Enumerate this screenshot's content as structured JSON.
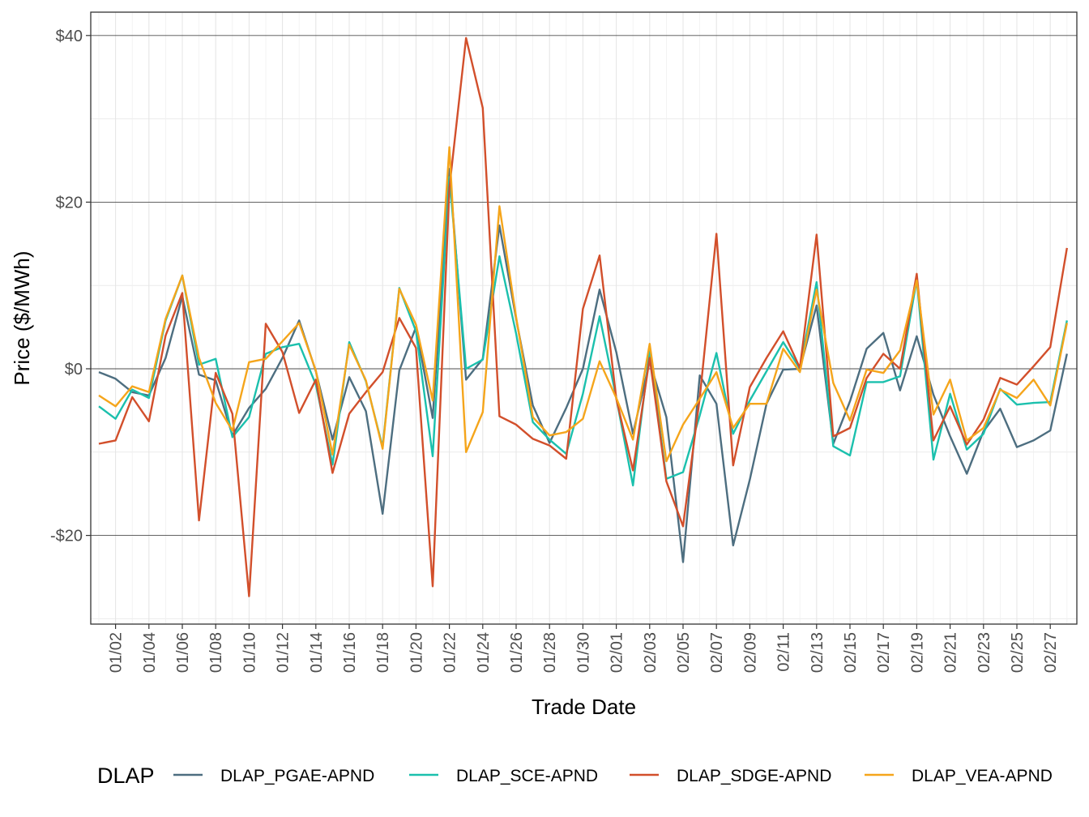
{
  "chart_data": {
    "type": "line",
    "xlabel": "Trade Date",
    "ylabel": "Price ($/MWh)",
    "ylim": [
      -30,
      43
    ],
    "yticks": [
      {
        "value": -20,
        "label": "-$20"
      },
      {
        "value": 0,
        "label": "$0"
      },
      {
        "value": 20,
        "label": "$20"
      },
      {
        "value": 40,
        "label": "$40"
      }
    ],
    "x": [
      "01/01",
      "01/02",
      "01/03",
      "01/04",
      "01/05",
      "01/06",
      "01/07",
      "01/08",
      "01/09",
      "01/10",
      "01/11",
      "01/12",
      "01/13",
      "01/14",
      "01/15",
      "01/16",
      "01/17",
      "01/18",
      "01/19",
      "01/20",
      "01/21",
      "01/22",
      "01/23",
      "01/24",
      "01/25",
      "01/26",
      "01/27",
      "01/28",
      "01/29",
      "01/30",
      "01/31",
      "02/01",
      "02/02",
      "02/03",
      "02/04",
      "02/05",
      "02/06",
      "02/07",
      "02/08",
      "02/09",
      "02/10",
      "02/11",
      "02/12",
      "02/13",
      "02/14",
      "02/15",
      "02/16",
      "02/17",
      "02/18",
      "02/19",
      "02/20",
      "02/21",
      "02/22",
      "02/23",
      "02/24",
      "02/25",
      "02/26",
      "02/27",
      "02/28"
    ],
    "xtick_labels": [
      "01/02",
      "01/04",
      "01/06",
      "01/08",
      "01/10",
      "01/12",
      "01/14",
      "01/16",
      "01/18",
      "01/20",
      "01/22",
      "01/24",
      "01/26",
      "01/28",
      "01/30",
      "02/01",
      "02/03",
      "02/05",
      "02/07",
      "02/09",
      "02/11",
      "02/13",
      "02/15",
      "02/17",
      "02/19",
      "02/21",
      "02/23",
      "02/25",
      "02/27"
    ],
    "grid": true,
    "legend": {
      "title": "DLAP",
      "position": "bottom"
    },
    "series": [
      {
        "name": "DLAP_PGAE-APND",
        "color": "#4d6e80",
        "values": [
          -0.4,
          -1.2,
          -2.8,
          -3.2,
          1.3,
          8.7,
          -0.7,
          -1.4,
          -8.0,
          -4.7,
          -2.4,
          1.3,
          5.8,
          -0.3,
          -8.5,
          -1.0,
          -5.1,
          -17.4,
          -0.2,
          5.0,
          -5.9,
          24.0,
          -1.3,
          1.2,
          17.2,
          6.0,
          -4.4,
          -8.9,
          -4.7,
          0.0,
          9.5,
          2.0,
          -7.8,
          0.9,
          -5.8,
          -23.2,
          -0.8,
          -4.2,
          -21.2,
          -13.3,
          -4.2,
          -0.1,
          0.0,
          7.6,
          -9.0,
          -3.9,
          2.4,
          4.3,
          -2.6,
          3.9,
          -3.1,
          -8.1,
          -12.6,
          -7.5,
          -4.8,
          -9.4,
          -8.6,
          -7.4,
          1.8
        ]
      },
      {
        "name": "DLAP_SCE-APND",
        "color": "#1bc0ad",
        "values": [
          -4.5,
          -6.0,
          -2.5,
          -3.5,
          5.8,
          11.2,
          0.5,
          1.2,
          -8.2,
          -5.8,
          1.8,
          2.6,
          3.0,
          -1.9,
          -11.5,
          3.2,
          -1.5,
          -9.4,
          9.7,
          4.5,
          -10.5,
          23.0,
          0.0,
          1.1,
          13.5,
          4.2,
          -6.4,
          -8.5,
          -10.2,
          -3.0,
          6.3,
          -3.5,
          -14.0,
          2.2,
          -13.2,
          -12.4,
          -5.6,
          1.9,
          -7.8,
          -3.8,
          -0.3,
          3.2,
          0.0,
          10.4,
          -9.3,
          -10.4,
          -1.6,
          -1.6,
          -0.9,
          10.7,
          -10.9,
          -3.0,
          -9.7,
          -7.8,
          -2.4,
          -4.3,
          -4.1,
          -4.0,
          5.8
        ]
      },
      {
        "name": "DLAP_SDGE-APND",
        "color": "#d24f2b",
        "values": [
          -9.0,
          -8.6,
          -3.4,
          -6.3,
          4.0,
          9.1,
          -18.2,
          -0.5,
          -5.4,
          -27.3,
          5.4,
          2.0,
          -5.3,
          -1.3,
          -12.5,
          -5.4,
          -2.8,
          -0.4,
          6.1,
          2.5,
          -26.1,
          21.7,
          39.7,
          31.3,
          -5.7,
          -6.7,
          -8.4,
          -9.2,
          -10.8,
          7.2,
          13.6,
          -3.6,
          -12.2,
          1.3,
          -13.5,
          -18.9,
          -3.5,
          16.2,
          -11.6,
          -2.2,
          1.3,
          4.5,
          0.1,
          16.1,
          -8.1,
          -7.1,
          -1.1,
          1.8,
          0.0,
          11.4,
          -8.6,
          -4.5,
          -9.1,
          -6.1,
          -1.1,
          -1.9,
          0.3,
          2.6,
          14.5
        ]
      },
      {
        "name": "DLAP_VEA-APND",
        "color": "#f5a51b",
        "values": [
          -3.2,
          -4.5,
          -2.1,
          -2.8,
          6.0,
          11.2,
          1.3,
          -4.1,
          -7.4,
          0.8,
          1.2,
          3.3,
          5.5,
          -0.2,
          -10.3,
          2.9,
          -1.4,
          -9.6,
          9.6,
          5.3,
          -3.8,
          26.6,
          -10.0,
          -5.2,
          19.5,
          6.2,
          -5.8,
          -8.0,
          -7.6,
          -6.0,
          0.9,
          -3.5,
          -8.5,
          3.0,
          -11.1,
          -6.7,
          -3.6,
          -0.4,
          -7.1,
          -4.2,
          -4.2,
          2.4,
          -0.4,
          9.5,
          -1.7,
          -6.2,
          -0.1,
          -0.5,
          2.2,
          10.6,
          -5.5,
          -1.3,
          -8.6,
          -7.1,
          -2.5,
          -3.5,
          -1.3,
          -4.4,
          5.5
        ]
      }
    ]
  }
}
